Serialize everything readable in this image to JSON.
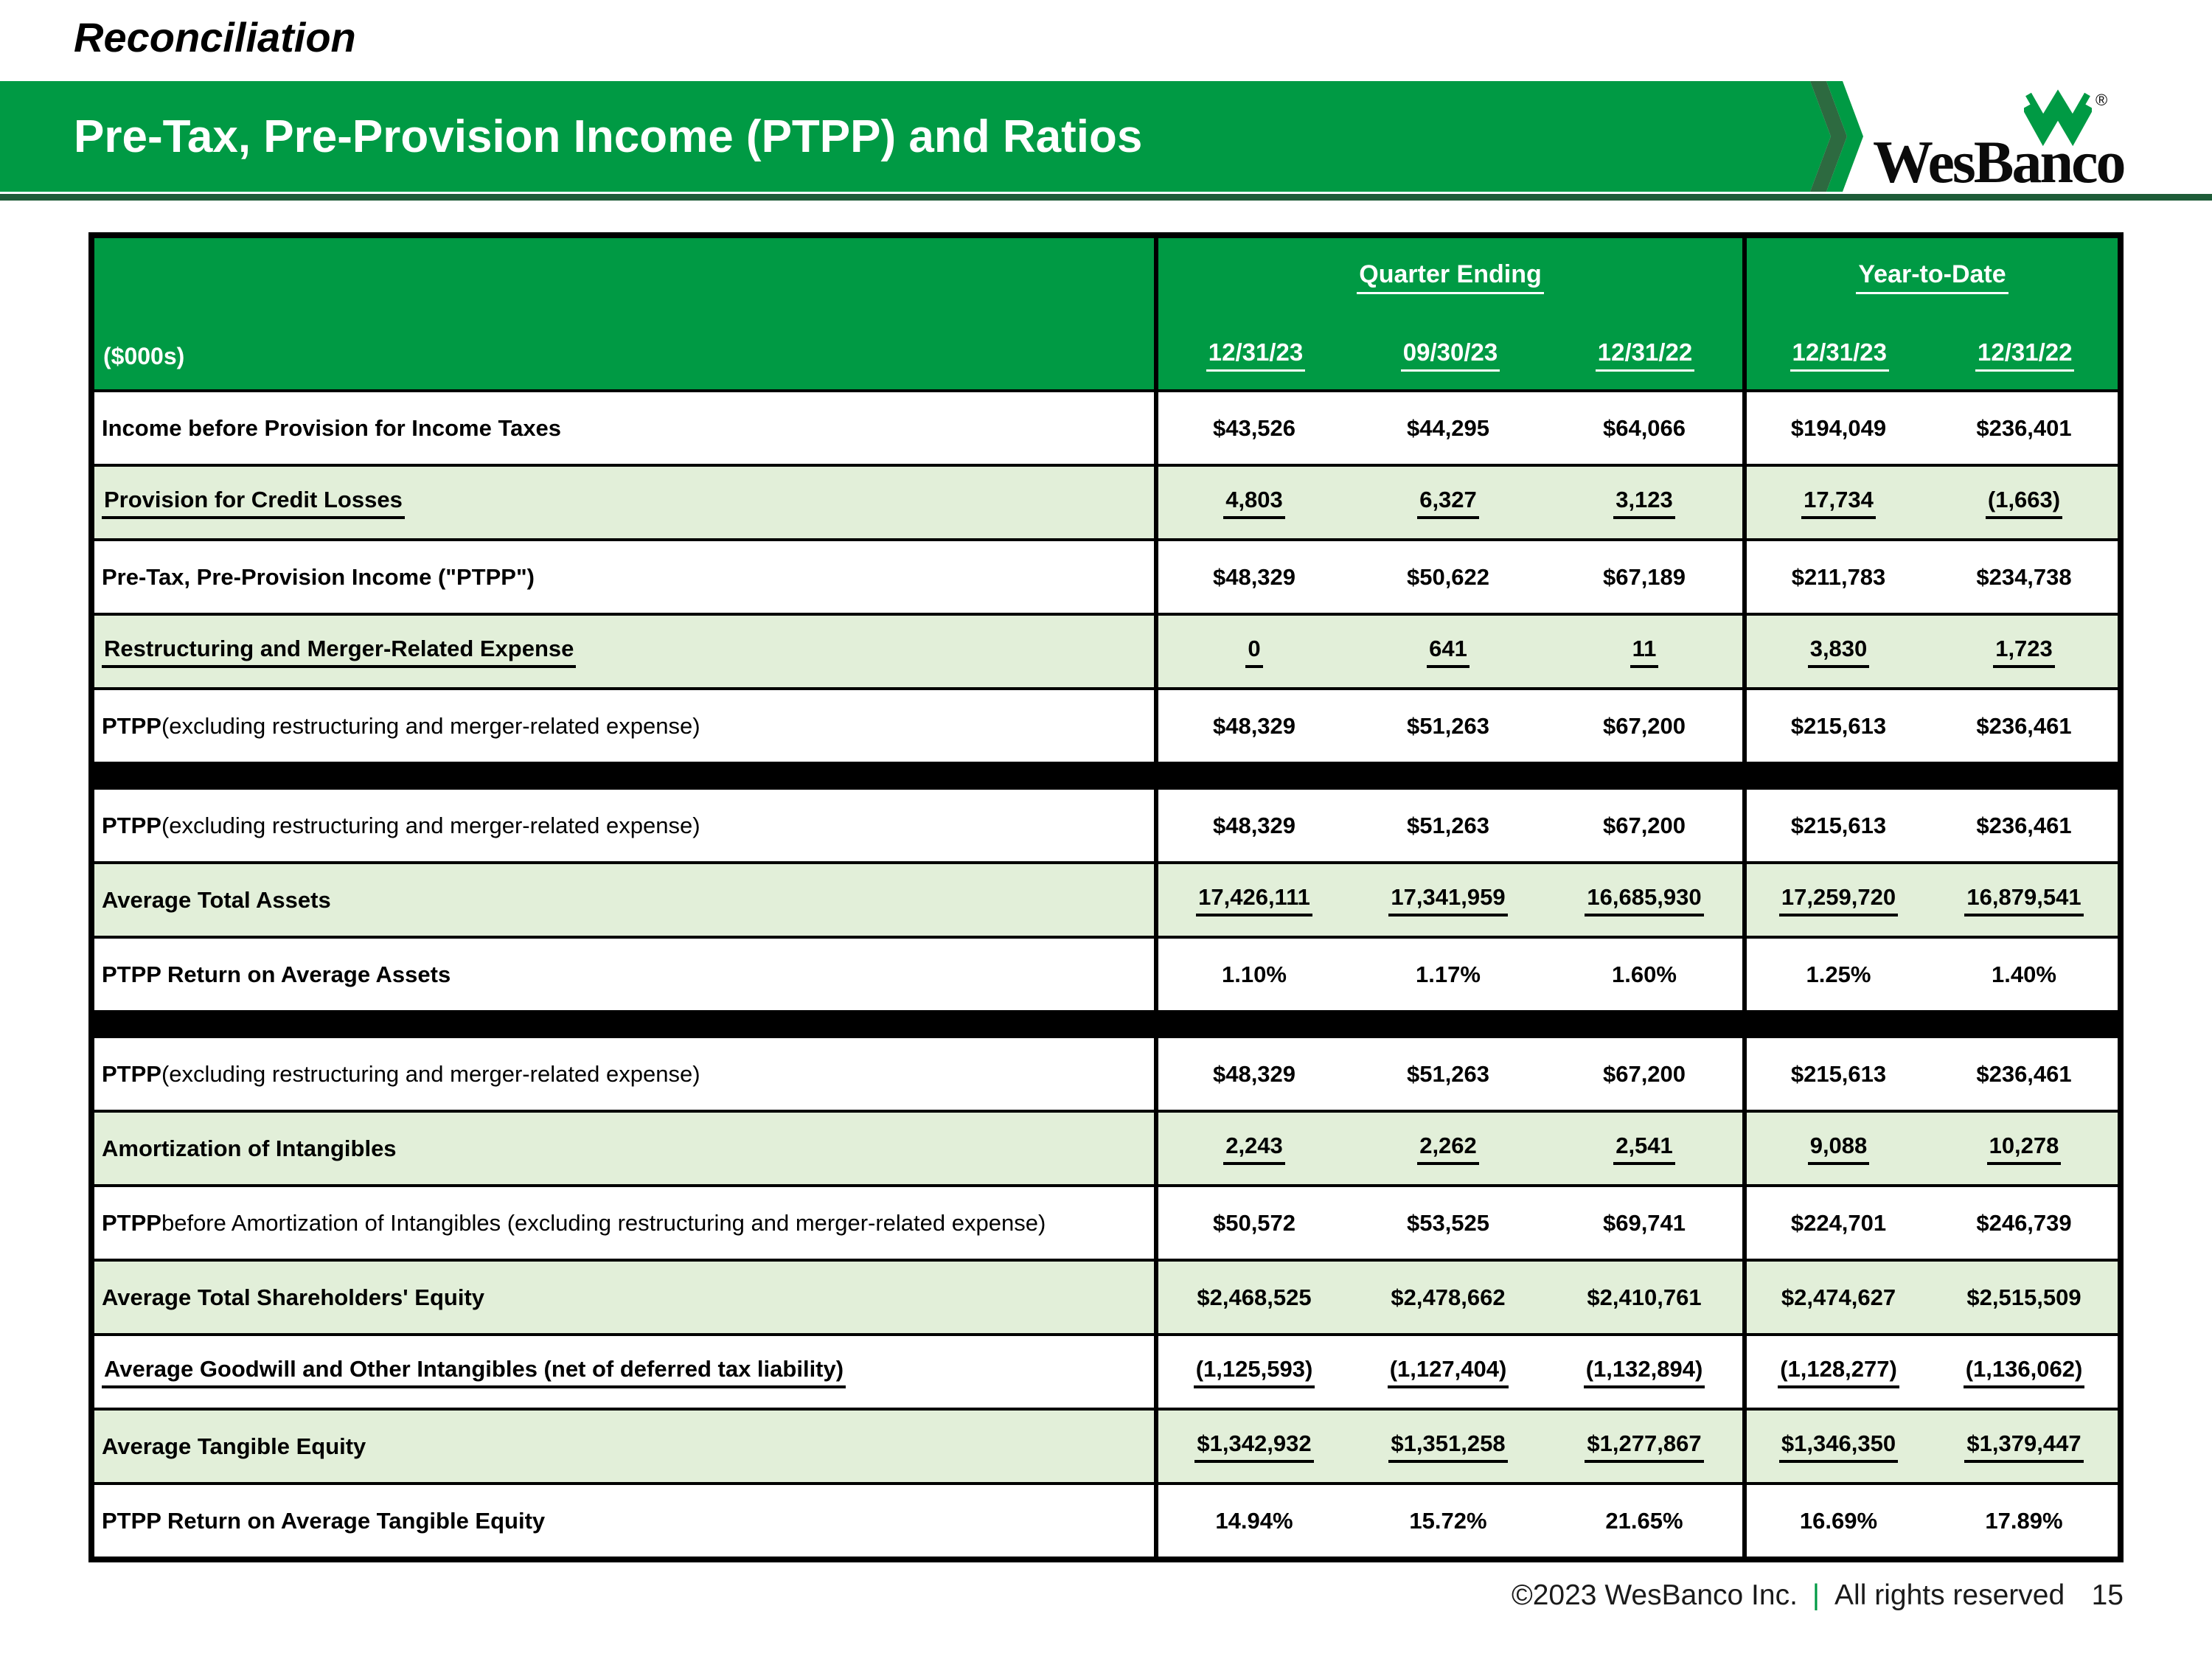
{
  "page_title": "Reconciliation",
  "banner": {
    "title": "Pre-Tax, Pre-Provision Income (PTPP) and Ratios"
  },
  "logo": {
    "wordmark": "WesBanco",
    "registered": "®",
    "mark": "wesbanco-w-mark"
  },
  "colors": {
    "brand_green": "#009A44",
    "dark_green": "#1E5C38",
    "row_green": "#E2EFD9",
    "header_text": "#FFFFFF",
    "body_text": "#000000"
  },
  "table": {
    "units_label": "($000s)",
    "groups": [
      {
        "label": "Quarter Ending",
        "dates": [
          "12/31/23",
          "09/30/23",
          "12/31/22"
        ]
      },
      {
        "label": "Year-to-Date",
        "dates": [
          "12/31/23",
          "12/31/22"
        ]
      }
    ],
    "rows": [
      {
        "type": "data",
        "shaded": false,
        "label": "Income before Provision for Income Taxes",
        "label_rest": "",
        "label_underlined": false,
        "values": [
          "$43,526",
          "$44,295",
          "$64,066",
          "$194,049",
          "$236,401"
        ],
        "values_underlined": false
      },
      {
        "type": "data",
        "shaded": true,
        "label": "Provision for Credit Losses",
        "label_rest": "",
        "label_underlined": true,
        "values": [
          "4,803",
          "6,327",
          "3,123",
          "17,734",
          "(1,663)"
        ],
        "values_underlined": true
      },
      {
        "type": "data",
        "shaded": false,
        "label": "Pre-Tax, Pre-Provision Income (\"PTPP\")",
        "label_rest": "",
        "label_underlined": false,
        "values": [
          "$48,329",
          "$50,622",
          "$67,189",
          "$211,783",
          "$234,738"
        ],
        "values_underlined": false
      },
      {
        "type": "data",
        "shaded": true,
        "label": "Restructuring and Merger-Related Expense",
        "label_rest": "",
        "label_underlined": true,
        "values": [
          "0",
          "641",
          "11",
          "3,830",
          "1,723"
        ],
        "values_underlined": true
      },
      {
        "type": "data",
        "shaded": false,
        "label": "PTPP",
        "label_rest": " (excluding restructuring and merger-related expense)",
        "label_underlined": false,
        "values": [
          "$48,329",
          "$51,263",
          "$67,200",
          "$215,613",
          "$236,461"
        ],
        "values_underlined": false
      },
      {
        "type": "divider"
      },
      {
        "type": "data",
        "shaded": false,
        "label": "PTPP",
        "label_rest": " (excluding restructuring and merger-related expense)",
        "label_underlined": false,
        "values": [
          "$48,329",
          "$51,263",
          "$67,200",
          "$215,613",
          "$236,461"
        ],
        "values_underlined": false
      },
      {
        "type": "data",
        "shaded": true,
        "label": "Average Total Assets",
        "label_rest": "",
        "label_underlined": false,
        "values": [
          "17,426,111",
          "17,341,959",
          "16,685,930",
          "17,259,720",
          "16,879,541"
        ],
        "values_underlined": true
      },
      {
        "type": "data",
        "shaded": false,
        "label": "PTPP Return on Average Assets",
        "label_rest": "",
        "label_underlined": false,
        "values": [
          "1.10%",
          "1.17%",
          "1.60%",
          "1.25%",
          "1.40%"
        ],
        "values_underlined": false
      },
      {
        "type": "divider"
      },
      {
        "type": "data",
        "shaded": false,
        "label": "PTPP",
        "label_rest": " (excluding restructuring and merger-related expense)",
        "label_underlined": false,
        "values": [
          "$48,329",
          "$51,263",
          "$67,200",
          "$215,613",
          "$236,461"
        ],
        "values_underlined": false
      },
      {
        "type": "data",
        "shaded": true,
        "label": "Amortization of Intangibles",
        "label_rest": "",
        "label_underlined": false,
        "values": [
          "2,243",
          "2,262",
          "2,541",
          "9,088",
          "10,278"
        ],
        "values_underlined": true
      },
      {
        "type": "data",
        "shaded": false,
        "label": "PTPP",
        "label_rest": " before Amortization of Intangibles (excluding restructuring and merger-related expense)",
        "label_underlined": false,
        "values": [
          "$50,572",
          "$53,525",
          "$69,741",
          "$224,701",
          "$246,739"
        ],
        "values_underlined": false
      },
      {
        "type": "data",
        "shaded": true,
        "label": "Average Total Shareholders' Equity",
        "label_rest": "",
        "label_underlined": false,
        "values": [
          "$2,468,525",
          "$2,478,662",
          "$2,410,761",
          "$2,474,627",
          "$2,515,509"
        ],
        "values_underlined": false
      },
      {
        "type": "data",
        "shaded": false,
        "label": "Average Goodwill and Other Intangibles (net of deferred tax liability)",
        "label_rest": "",
        "label_underlined": true,
        "values": [
          "(1,125,593)",
          "(1,127,404)",
          "(1,132,894)",
          "(1,128,277)",
          "(1,136,062)"
        ],
        "values_underlined": true
      },
      {
        "type": "data",
        "shaded": true,
        "label": "Average Tangible Equity",
        "label_rest": "",
        "label_underlined": false,
        "values": [
          "$1,342,932",
          "$1,351,258",
          "$1,277,867",
          "$1,346,350",
          "$1,379,447"
        ],
        "values_underlined": true
      },
      {
        "type": "data",
        "shaded": false,
        "label": "PTPP Return on Average Tangible Equity",
        "label_rest": "",
        "label_underlined": false,
        "values": [
          "14.94%",
          "15.72%",
          "21.65%",
          "16.69%",
          "17.89%"
        ],
        "values_underlined": false
      }
    ]
  },
  "footer": {
    "copyright": "©2023 WesBanco Inc.",
    "separator": "|",
    "rights": "All rights reserved",
    "page_number": "15"
  }
}
